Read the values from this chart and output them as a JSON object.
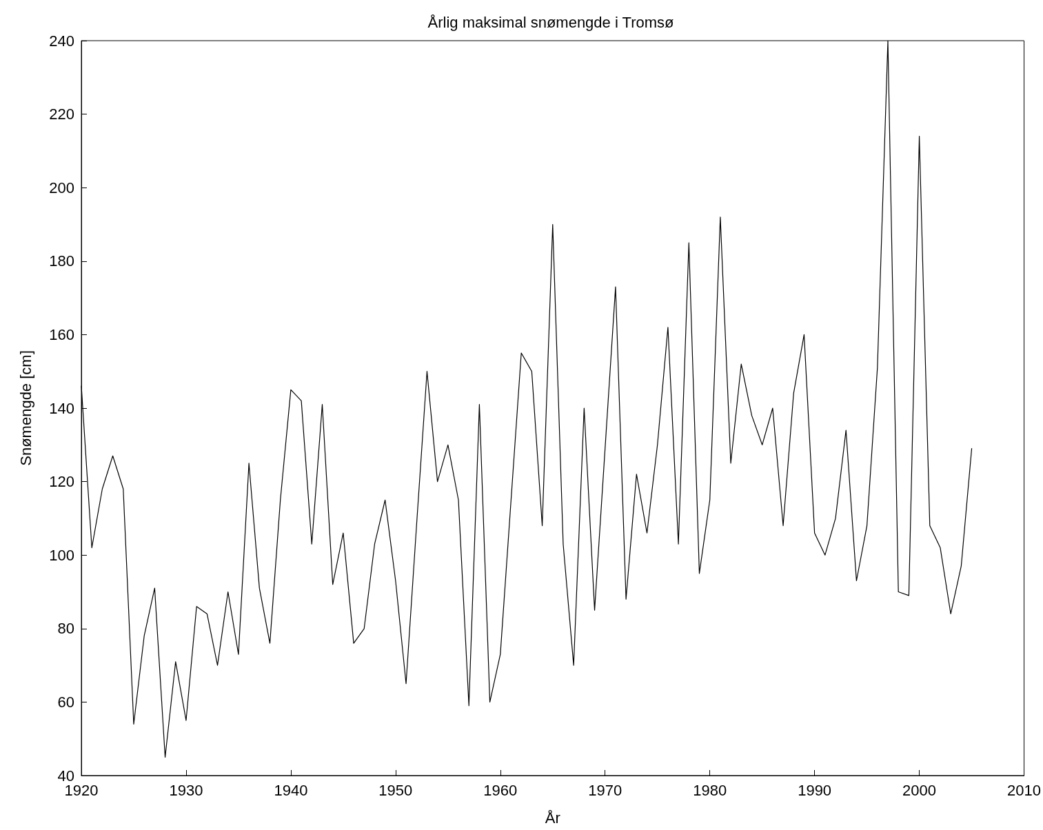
{
  "chart_data": {
    "type": "line",
    "title": "Årlig maksimal snømengde i Tromsø",
    "xlabel": "År",
    "ylabel": "Snømengde [cm]",
    "x": [
      1920,
      1921,
      1922,
      1923,
      1924,
      1925,
      1926,
      1927,
      1928,
      1929,
      1930,
      1931,
      1932,
      1933,
      1934,
      1935,
      1936,
      1937,
      1938,
      1939,
      1940,
      1941,
      1942,
      1943,
      1944,
      1945,
      1946,
      1947,
      1948,
      1949,
      1950,
      1951,
      1952,
      1953,
      1954,
      1955,
      1956,
      1957,
      1958,
      1959,
      1960,
      1961,
      1962,
      1963,
      1964,
      1965,
      1966,
      1967,
      1968,
      1969,
      1970,
      1971,
      1972,
      1973,
      1974,
      1975,
      1976,
      1977,
      1978,
      1979,
      1980,
      1981,
      1982,
      1983,
      1984,
      1985,
      1986,
      1987,
      1988,
      1989,
      1990,
      1991,
      1992,
      1993,
      1994,
      1995,
      1996,
      1997,
      1998,
      1999,
      2000,
      2001,
      2002,
      2003,
      2004,
      2005
    ],
    "series": [
      {
        "color": "#000000",
        "values": [
          146,
          102,
          118,
          127,
          118,
          54,
          78,
          91,
          45,
          71,
          55,
          86,
          84,
          70,
          90,
          73,
          125,
          91,
          76,
          115,
          145,
          142,
          103,
          141,
          92,
          106,
          76,
          80,
          103,
          115,
          93,
          65,
          108,
          150,
          120,
          130,
          115,
          59,
          141,
          60,
          73,
          114,
          155,
          150,
          108,
          190,
          103,
          70,
          140,
          85,
          129,
          173,
          88,
          122,
          106,
          130,
          162,
          103,
          185,
          95,
          115,
          192,
          125,
          152,
          138,
          130,
          140,
          108,
          144,
          160,
          106,
          100,
          110,
          134,
          93,
          108,
          151,
          240,
          90,
          89,
          214,
          108,
          102,
          84,
          97,
          129
        ]
      }
    ],
    "xlim": [
      1920,
      2010
    ],
    "xticks": [
      1920,
      1930,
      1940,
      1950,
      1960,
      1970,
      1980,
      1990,
      2000,
      2010
    ],
    "ylim": [
      40,
      240
    ],
    "yticks": [
      40,
      60,
      80,
      100,
      120,
      140,
      160,
      180,
      200,
      220,
      240
    ],
    "grid": false,
    "marker": "none",
    "line_style": "solid"
  }
}
